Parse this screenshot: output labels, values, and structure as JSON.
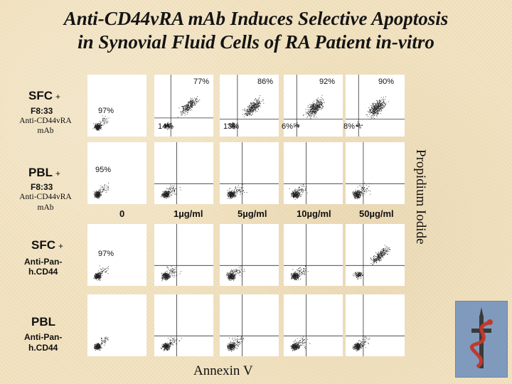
{
  "title": {
    "line1": "Anti-CD44vRA mAb Induces Selective Apoptosis",
    "line2": "in Synovial Fluid Cells of RA Patient in-vitro"
  },
  "rows": [
    {
      "cell": "SFC",
      "plus": "+",
      "mab_line1": "F8:33",
      "mab_line2": "Anti-CD44vRA",
      "mab_line3": "mAb"
    },
    {
      "cell": "PBL",
      "plus": "+",
      "mab_line1": "F8:33",
      "mab_line2": "Anti-CD44vRA",
      "mab_line3": "mAb"
    },
    {
      "cell": "SFC",
      "plus": "+",
      "mab_line1": "Anti-Pan-",
      "mab_line2": "h.CD44"
    },
    {
      "cell": "PBL",
      "mab_line1": "Anti-Pan-",
      "mab_line2": "h.CD44"
    }
  ],
  "concentrations": [
    "0",
    "1µg/ml",
    "5µg/ml",
    "10µg/ml",
    "50µg/ml"
  ],
  "percentages": {
    "r1c1": "97%",
    "r1c2_top": "77%",
    "r1c2_bottom": "14%",
    "r1c3_top": "86%",
    "r1c3_bottom": "13%",
    "r1c4_top": "92%",
    "r1c4_bottom": "6%",
    "r1c5_top": "90%",
    "r1c5_bottom": "8%",
    "r2c1": "95%",
    "r3c1": "97%"
  },
  "axes": {
    "x_label": "Annexin V",
    "y_label": "Propidium Iodide"
  },
  "colors": {
    "background": "#f2e2bf",
    "plot_background": "#ffffff",
    "dots": "#222222",
    "logo_background": "#7f9abc",
    "logo_red": "#c0392b"
  }
}
